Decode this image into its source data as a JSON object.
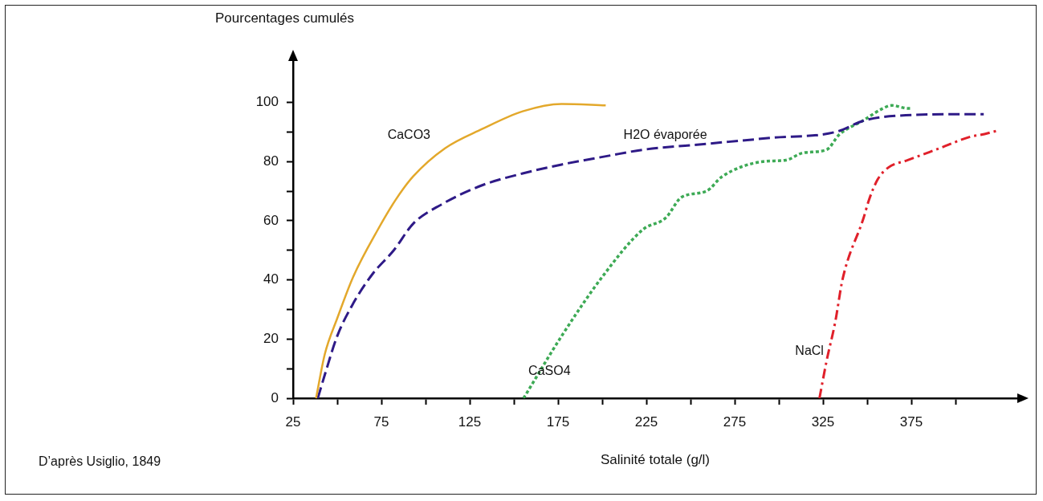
{
  "chart_data": {
    "type": "line",
    "xlabel": "Salinité totale (g/l)",
    "ylabel": "Pourcentages cumulés",
    "annotations": [
      "D’après Usiglio, 1849"
    ],
    "xlim": [
      25,
      435
    ],
    "ylim": [
      0,
      114
    ],
    "xticks": [
      25,
      {
        "value": 50,
        "label": null
      },
      75,
      {
        "value": 100,
        "label": null
      },
      125,
      {
        "value": 150,
        "label": null
      },
      175,
      {
        "value": 200,
        "label": null
      },
      225,
      {
        "value": 250,
        "label": null
      },
      275,
      {
        "value": 300,
        "label": null
      },
      325,
      {
        "value": 350,
        "label": null
      },
      375,
      {
        "value": 400,
        "label": null
      }
    ],
    "yticks": [
      0,
      {
        "value": 10,
        "label": null
      },
      20,
      {
        "value": 30,
        "label": null
      },
      40,
      {
        "value": 50,
        "label": null
      },
      60,
      {
        "value": 70,
        "label": null
      },
      80,
      {
        "value": 90,
        "label": null
      },
      100
    ],
    "grid": false,
    "legend": false,
    "marker": "none",
    "series": [
      {
        "name": "CaCO3",
        "color": "#e3a82b",
        "line_style": "solid",
        "x": [
          38,
          43,
          50,
          59,
          73,
          83,
          93,
          111,
          132,
          155,
          177,
          202
        ],
        "values": [
          0,
          15,
          27,
          41,
          57,
          67,
          75,
          84.5,
          91,
          97,
          99.5,
          99
        ]
      },
      {
        "name": "H2O évaporée",
        "color": "#2e1a87",
        "line_style": "dashed",
        "x": [
          39,
          43,
          50,
          59,
          70,
          82,
          93,
          109,
          132,
          155,
          177,
          204,
          223,
          259,
          295,
          332,
          349,
          367,
          404,
          416
        ],
        "values": [
          0,
          8,
          21,
          32,
          42,
          50,
          59,
          65.5,
          72,
          76,
          79,
          82,
          84,
          86,
          88,
          90,
          94,
          95.5,
          96,
          96
        ]
      },
      {
        "name": "CaSO4",
        "color": "#3daa55",
        "line_style": "dotted",
        "x": [
          155.5,
          177,
          200,
          223,
          236,
          245,
          259,
          268,
          291,
          304,
          314,
          327,
          334,
          348,
          359,
          364,
          373,
          375
        ],
        "values": [
          0,
          21,
          41,
          57,
          61,
          68,
          70,
          75,
          80,
          80.5,
          83,
          84,
          89,
          94,
          98,
          99,
          98,
          98
        ]
      },
      {
        "name": "NaCl",
        "color": "#e0202a",
        "line_style": "dashdot",
        "x": [
          323,
          327,
          332,
          336,
          348,
          351,
          356,
          362,
          373,
          391,
          409,
          414,
          424
        ],
        "values": [
          0,
          12.5,
          26,
          40,
          61,
          67,
          74,
          78,
          80.5,
          84.5,
          88.5,
          89,
          90.5
        ]
      }
    ]
  }
}
